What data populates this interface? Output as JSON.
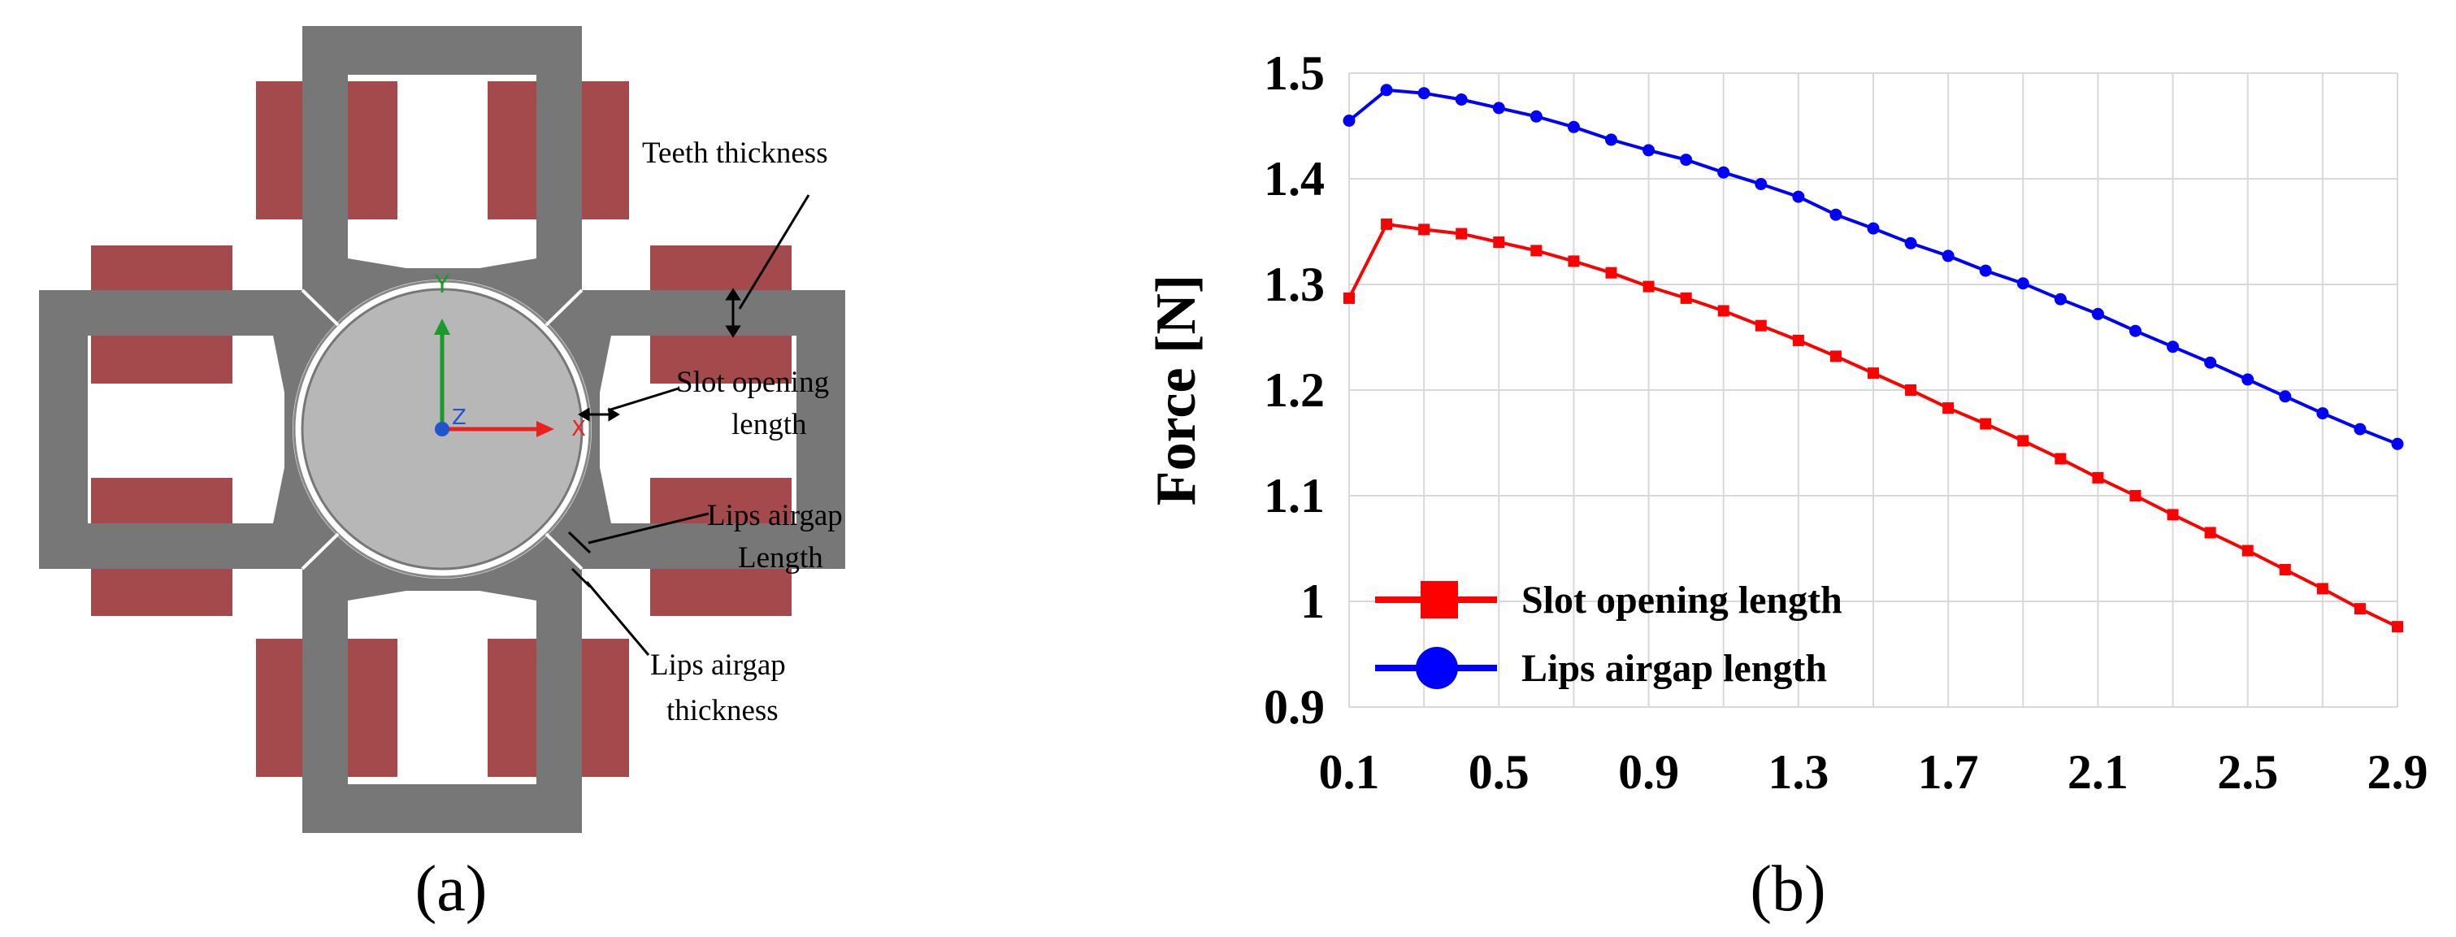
{
  "panels": {
    "a_label": "(a)",
    "b_label": "(b)"
  },
  "motor_diagram": {
    "annotations": {
      "teeth_thickness": "Teeth thickness",
      "slot_opening_line1": "Slot opening",
      "slot_opening_line2": "length",
      "lips_airgap_length_line1": "Lips airgap",
      "lips_airgap_length_line2": "Length",
      "lips_airgap_thickness_line1": "Lips airgap",
      "lips_airgap_thickness_line2": "thickness"
    },
    "axis_labels": {
      "x": "X",
      "y": "Y",
      "z": "Z"
    },
    "colors": {
      "stator": "#777777",
      "coil": "#a54a4c",
      "rotor": "#b7b7b7",
      "x_axis": "#e8231f",
      "y_axis": "#1a9a2a",
      "z_axis": "#2255cc"
    }
  },
  "chart_data": {
    "type": "line",
    "title": "",
    "xlabel": "",
    "ylabel": "Force [N]",
    "xlim": [
      0.1,
      2.9
    ],
    "ylim": [
      0.9,
      1.5
    ],
    "x_ticks": [
      "0.1",
      "0.5",
      "0.9",
      "1.3",
      "1.7",
      "2.1",
      "2.5",
      "2.9"
    ],
    "y_ticks": [
      "0.9",
      "1",
      "1.1",
      "1.2",
      "1.3",
      "1.4",
      "1.5"
    ],
    "grid": true,
    "legend_position": "bottom-left",
    "x": [
      0.1,
      0.2,
      0.3,
      0.4,
      0.5,
      0.6,
      0.7,
      0.8,
      0.9,
      1.0,
      1.1,
      1.2,
      1.3,
      1.4,
      1.5,
      1.6,
      1.7,
      1.8,
      1.9,
      2.0,
      2.1,
      2.2,
      2.3,
      2.4,
      2.5,
      2.6,
      2.7,
      2.8,
      2.9
    ],
    "series": [
      {
        "name": "Slot opening length",
        "color": "#ff0000",
        "marker": "square",
        "values": [
          1.287,
          1.357,
          1.352,
          1.348,
          1.34,
          1.332,
          1.322,
          1.311,
          1.298,
          1.287,
          1.275,
          1.261,
          1.247,
          1.232,
          1.216,
          1.2,
          1.183,
          1.168,
          1.152,
          1.135,
          1.117,
          1.1,
          1.082,
          1.065,
          1.048,
          1.03,
          1.012,
          0.993,
          0.976
        ]
      },
      {
        "name": "Lips airgap length",
        "color": "#0000ff",
        "marker": "circle",
        "values": [
          1.455,
          1.484,
          1.481,
          1.475,
          1.467,
          1.459,
          1.449,
          1.437,
          1.427,
          1.418,
          1.406,
          1.395,
          1.383,
          1.366,
          1.353,
          1.339,
          1.327,
          1.313,
          1.301,
          1.286,
          1.272,
          1.256,
          1.241,
          1.226,
          1.21,
          1.194,
          1.178,
          1.163,
          1.149
        ]
      }
    ]
  }
}
